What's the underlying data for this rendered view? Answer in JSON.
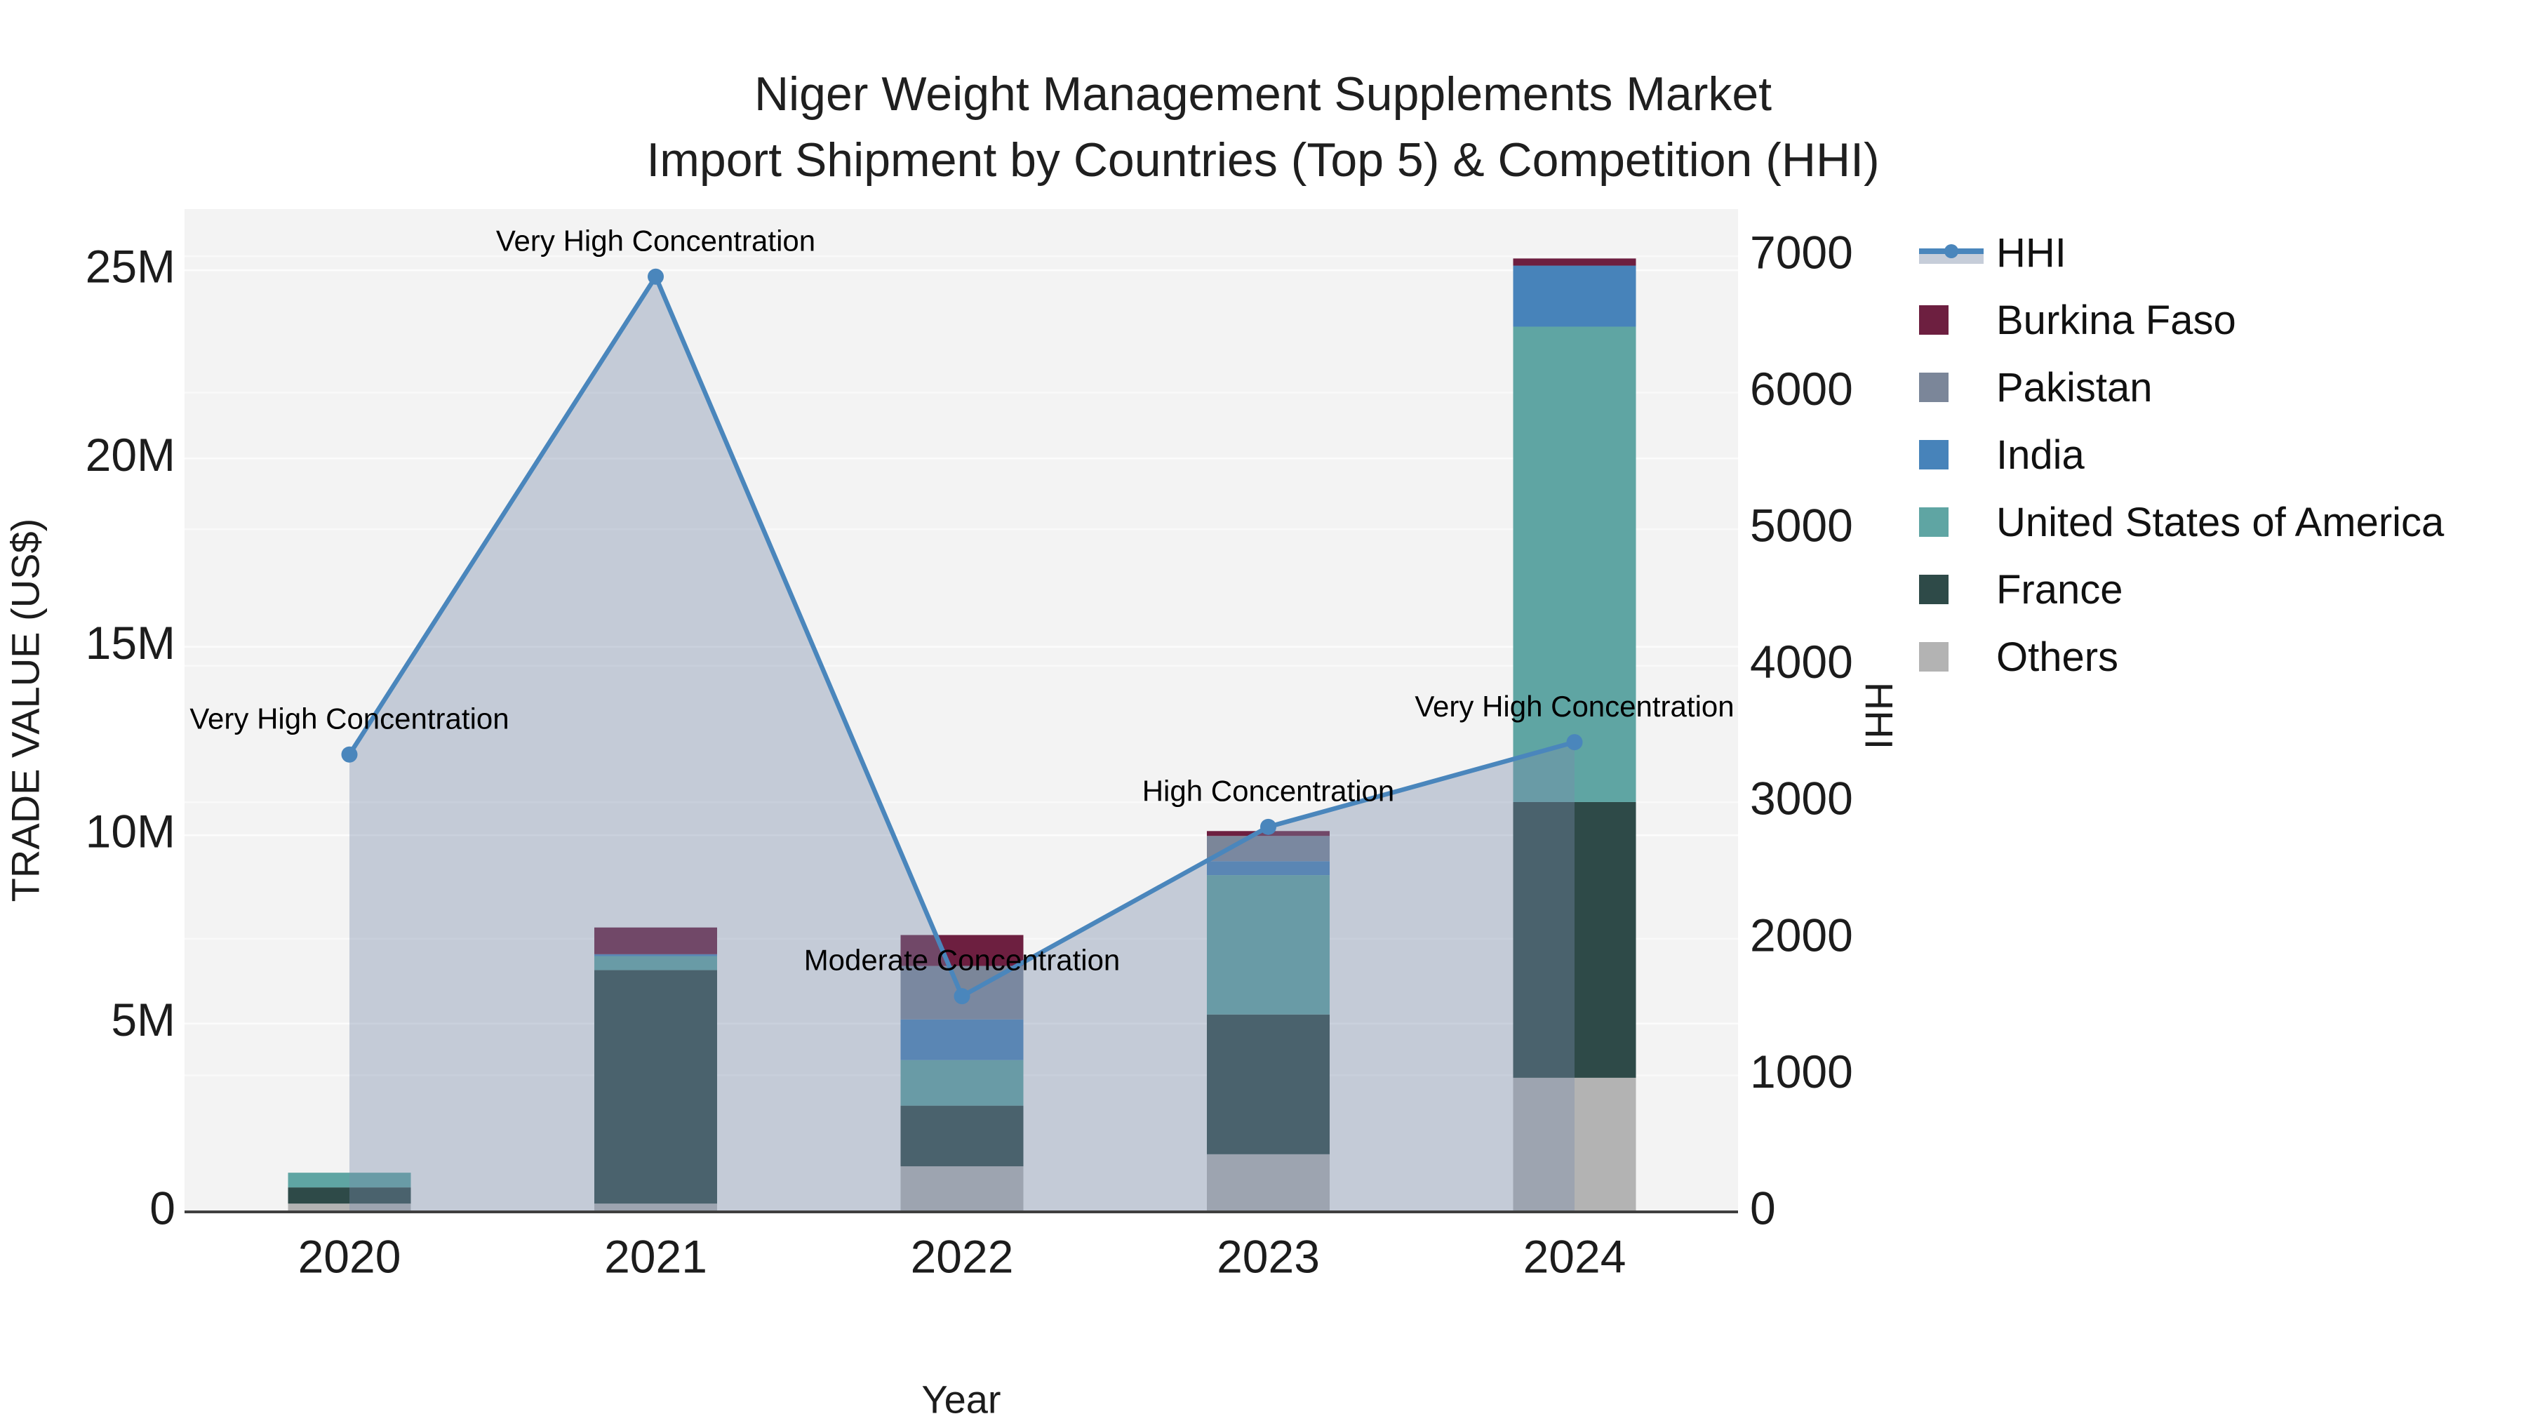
{
  "title": {
    "line1": "Niger Weight Management Supplements Market",
    "line2": "Import Shipment by Countries (Top 5) & Competition (HHI)"
  },
  "axes": {
    "left": {
      "title": "TRADE VALUE (US$)",
      "tick_values_musd": [
        0,
        5,
        10,
        15,
        20,
        25
      ],
      "tick_labels": [
        "0",
        "5M",
        "10M",
        "15M",
        "20M",
        "25M"
      ]
    },
    "right": {
      "title": "HHI",
      "tick_values": [
        0,
        1000,
        2000,
        3000,
        4000,
        5000,
        6000,
        7000
      ],
      "tick_labels": [
        "0",
        "1000",
        "2000",
        "3000",
        "4000",
        "5000",
        "6000",
        "7000"
      ]
    },
    "x": {
      "title": "Year",
      "categories": [
        "2020",
        "2021",
        "2022",
        "2023",
        "2024"
      ]
    }
  },
  "legend": {
    "items": [
      {
        "label": "HHI",
        "type": "line",
        "color": "#4a86bc"
      },
      {
        "label": "Burkina Faso",
        "type": "square",
        "color": "#6d1f40"
      },
      {
        "label": "Pakistan",
        "type": "square",
        "color": "#7b8699"
      },
      {
        "label": "India",
        "type": "square",
        "color": "#4783ba"
      },
      {
        "label": "United States of America",
        "type": "square",
        "color": "#5fa5a3"
      },
      {
        "label": "France",
        "type": "square",
        "color": "#2e4a48"
      },
      {
        "label": "Others",
        "type": "square",
        "color": "#b3b3b3"
      }
    ]
  },
  "chart_data": {
    "type": "bar",
    "subtype": "stacked-bars-with-area-line-overlay",
    "categories": [
      "2020",
      "2021",
      "2022",
      "2023",
      "2024"
    ],
    "bar_unit": "US$ millions",
    "series": [
      {
        "name": "Others",
        "color": "#b3b3b3",
        "values": [
          0.22,
          0.22,
          1.21,
          1.53,
          3.56
        ]
      },
      {
        "name": "France",
        "color": "#2e4a48",
        "values": [
          0.43,
          6.2,
          1.61,
          3.71,
          7.32
        ]
      },
      {
        "name": "United States of America",
        "color": "#5fa5a3",
        "values": [
          0.39,
          0.37,
          1.21,
          3.7,
          12.62
        ]
      },
      {
        "name": "India",
        "color": "#4783ba",
        "values": [
          0.0,
          0.05,
          1.08,
          0.37,
          1.62
        ]
      },
      {
        "name": "Pakistan",
        "color": "#7b8699",
        "values": [
          0.0,
          0.0,
          1.42,
          0.67,
          0.0
        ]
      },
      {
        "name": "Burkina Faso",
        "color": "#6d1f40",
        "values": [
          0.0,
          0.71,
          0.82,
          0.13,
          0.19
        ]
      }
    ],
    "stack_order_note": "series listed bottom-to-top of stack; legend shows reverse order",
    "line_series": {
      "name": "HHI",
      "values": [
        3350,
        6850,
        1580,
        2820,
        3440
      ],
      "color": "#4a86bc",
      "area_fill": "rgba(120,140,170,0.38)"
    },
    "annotations": [
      {
        "category": "2020",
        "text": "Very High Concentration"
      },
      {
        "category": "2021",
        "text": "Very High Concentration"
      },
      {
        "category": "2022",
        "text": "Moderate Concentration"
      },
      {
        "category": "2023",
        "text": "High Concentration"
      },
      {
        "category": "2024",
        "text": "Very High Concentration"
      }
    ],
    "title": "Niger Weight Management Supplements Market — Import Shipment by Countries (Top 5) & Competition (HHI)",
    "xlabel": "Year",
    "ylabel_left": "TRADE VALUE (US$)",
    "ylabel_right": "HHI",
    "ylim_left_musd": [
      0,
      26.6
    ],
    "ylim_right": [
      0,
      7350
    ],
    "grid": true,
    "legend_position": "right"
  },
  "colors": {
    "plot_bg": "#f3f3f3",
    "gridline": "#ffffff",
    "axis_line": "#3f3f3f",
    "text": "#1c1c1c",
    "annotation_text": "#000000"
  }
}
